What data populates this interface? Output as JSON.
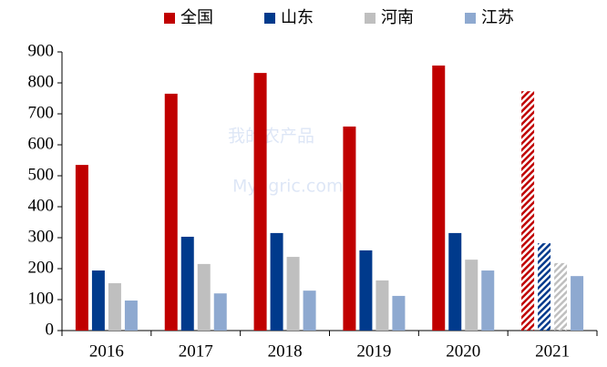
{
  "chart_data": {
    "type": "bar",
    "watermark": [
      "我的农产品",
      "Myagric.com"
    ],
    "categories": [
      "2016",
      "2017",
      "2018",
      "2019",
      "2020",
      "2021"
    ],
    "series": [
      {
        "name": "全国",
        "color": "#c00000",
        "values": [
          535,
          765,
          832,
          659,
          856,
          773
        ],
        "hatched": [
          false,
          false,
          false,
          false,
          false,
          true
        ]
      },
      {
        "name": "山东",
        "color": "#003a8c",
        "values": [
          194,
          303,
          315,
          259,
          315,
          282
        ],
        "hatched": [
          false,
          false,
          false,
          false,
          false,
          true
        ]
      },
      {
        "name": "河南",
        "color": "#bfbfbf",
        "values": [
          153,
          215,
          238,
          162,
          229,
          218
        ],
        "hatched": [
          false,
          false,
          false,
          false,
          false,
          true
        ]
      },
      {
        "name": "江苏",
        "color": "#8ea9d0",
        "values": [
          97,
          120,
          129,
          112,
          194,
          176
        ],
        "hatched": [
          false,
          false,
          false,
          false,
          false,
          false
        ]
      }
    ],
    "ylim": [
      0,
      900
    ],
    "yticks": [
      0,
      100,
      200,
      300,
      400,
      500,
      600,
      700,
      800,
      900
    ],
    "grid": false,
    "legend": "top"
  }
}
